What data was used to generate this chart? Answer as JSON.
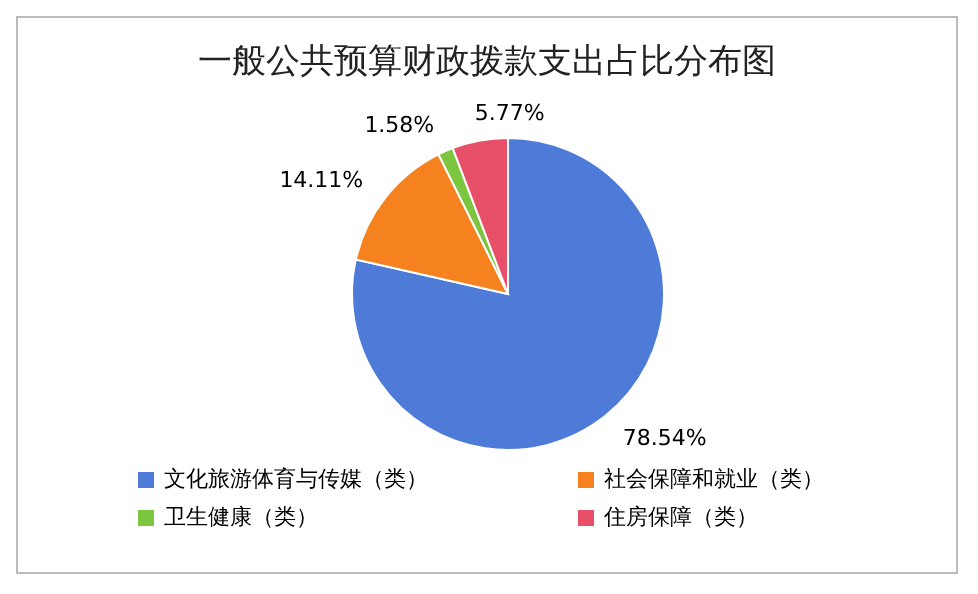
{
  "chart_data": {
    "type": "pie",
    "title": "一般公共预算财政拨款支出占比分布图",
    "categories": [
      "文化旅游体育与传媒（类）",
      "社会保障和就业（类）",
      "卫生健康（类）",
      "住房保障（类）"
    ],
    "values": [
      78.54,
      14.11,
      1.58,
      5.77
    ],
    "colors": [
      "#4f7bd8",
      "#f5821f",
      "#7cc53f",
      "#e8506a"
    ],
    "value_labels": [
      "78.54%",
      "14.11%",
      "1.58%",
      "5.77%"
    ],
    "legend": "bottom"
  }
}
